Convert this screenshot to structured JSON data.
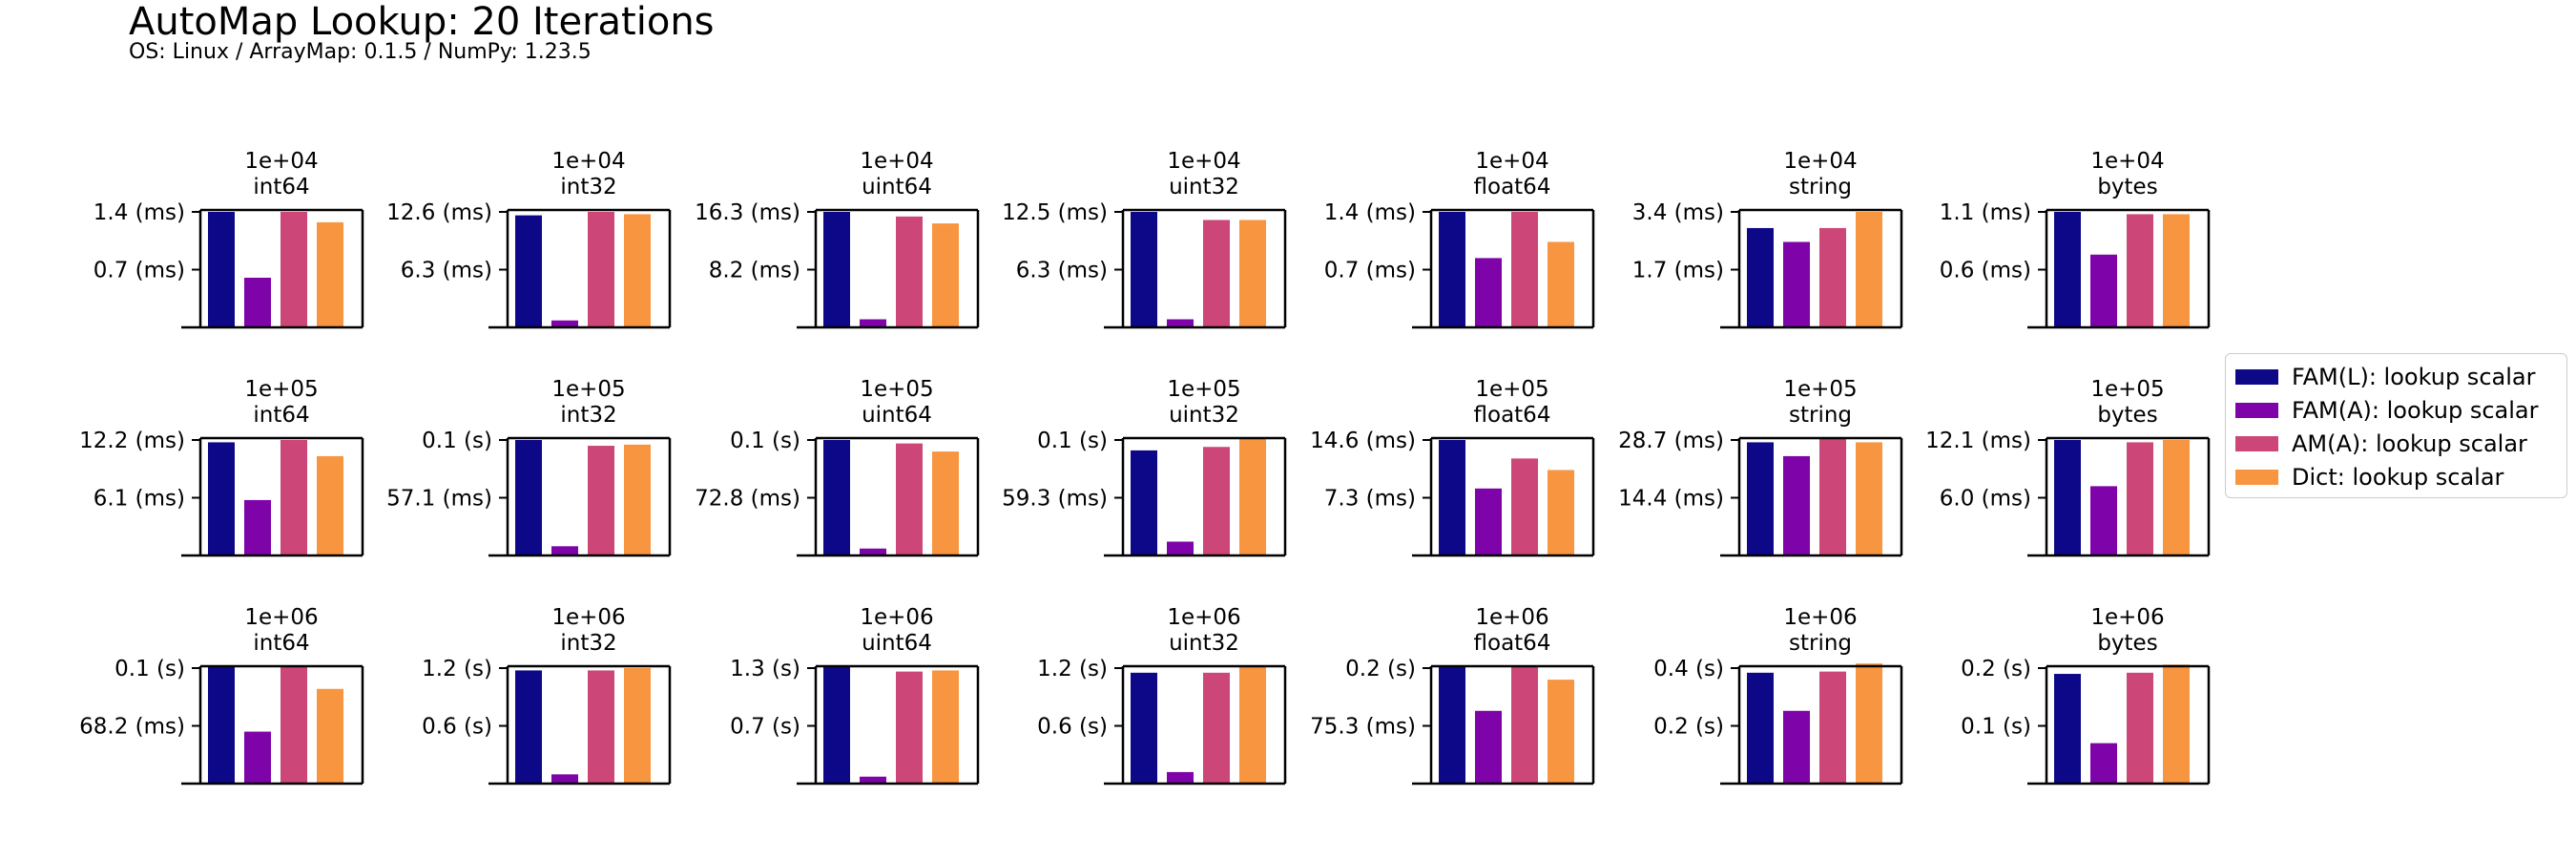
{
  "title": "AutoMap Lookup: 20 Iterations",
  "subtitle": "OS: Linux / ArrayMap: 0.1.5 / NumPy: 1.23.5",
  "legend": {
    "items": [
      {
        "label": "FAM(L): lookup scalar",
        "color": "#0d0887"
      },
      {
        "label": "FAM(A): lookup scalar",
        "color": "#7e03a8"
      },
      {
        "label": "AM(A): lookup scalar",
        "color": "#cc4778"
      },
      {
        "label": "Dict: lookup scalar",
        "color": "#f89540"
      }
    ]
  },
  "chart_data": {
    "type": "bar",
    "layout": "grid 3 rows x 7 columns",
    "series_names": [
      "FAM(L): lookup scalar",
      "FAM(A): lookup scalar",
      "AM(A): lookup scalar",
      "Dict: lookup scalar"
    ],
    "series_colors": [
      "#0d0887",
      "#7e03a8",
      "#cc4778",
      "#f89540"
    ],
    "subplots": [
      {
        "title_top": "1e+04",
        "title_bottom": "int64",
        "ytick_labels": [
          "1.4 (ms)",
          "0.7 (ms)"
        ],
        "ytick_fractions": [
          1.0,
          0.5
        ],
        "values": [
          1.0,
          0.43,
          1.0,
          0.91
        ]
      },
      {
        "title_top": "1e+04",
        "title_bottom": "int32",
        "ytick_labels": [
          "12.6 (ms)",
          "6.3 (ms)"
        ],
        "ytick_fractions": [
          1.0,
          0.5
        ],
        "values": [
          0.97,
          0.06,
          1.0,
          0.98
        ]
      },
      {
        "title_top": "1e+04",
        "title_bottom": "uint64",
        "ytick_labels": [
          "16.3 (ms)",
          "8.2 (ms)"
        ],
        "ytick_fractions": [
          1.0,
          0.5
        ],
        "values": [
          1.0,
          0.07,
          0.96,
          0.9
        ]
      },
      {
        "title_top": "1e+04",
        "title_bottom": "uint32",
        "ytick_labels": [
          "12.5 (ms)",
          "6.3 (ms)"
        ],
        "ytick_fractions": [
          1.0,
          0.5
        ],
        "values": [
          1.0,
          0.07,
          0.93,
          0.93
        ]
      },
      {
        "title_top": "1e+04",
        "title_bottom": "float64",
        "ytick_labels": [
          "1.4 (ms)",
          "0.7 (ms)"
        ],
        "ytick_fractions": [
          1.0,
          0.5
        ],
        "values": [
          1.0,
          0.6,
          1.0,
          0.74
        ]
      },
      {
        "title_top": "1e+04",
        "title_bottom": "string",
        "ytick_labels": [
          "3.4 (ms)",
          "1.7 (ms)"
        ],
        "ytick_fractions": [
          1.0,
          0.5
        ],
        "values": [
          0.86,
          0.74,
          0.86,
          1.0
        ]
      },
      {
        "title_top": "1e+04",
        "title_bottom": "bytes",
        "ytick_labels": [
          "1.1 (ms)",
          "0.6 (ms)"
        ],
        "ytick_fractions": [
          1.0,
          0.5
        ],
        "values": [
          1.0,
          0.63,
          0.98,
          0.98
        ]
      },
      {
        "title_top": "1e+05",
        "title_bottom": "int64",
        "ytick_labels": [
          "12.2 (ms)",
          "6.1 (ms)"
        ],
        "ytick_fractions": [
          1.0,
          0.5
        ],
        "values": [
          0.98,
          0.48,
          1.0,
          0.86
        ]
      },
      {
        "title_top": "1e+05",
        "title_bottom": "int32",
        "ytick_labels": [
          "0.1 (s)",
          "57.1 (ms)"
        ],
        "ytick_fractions": [
          1.0,
          0.5
        ],
        "values": [
          1.0,
          0.08,
          0.95,
          0.96
        ]
      },
      {
        "title_top": "1e+05",
        "title_bottom": "uint64",
        "ytick_labels": [
          "0.1 (s)",
          "72.8 (ms)"
        ],
        "ytick_fractions": [
          1.0,
          0.5
        ],
        "values": [
          1.0,
          0.06,
          0.97,
          0.9
        ]
      },
      {
        "title_top": "1e+05",
        "title_bottom": "uint32",
        "ytick_labels": [
          "0.1 (s)",
          "59.3 (ms)"
        ],
        "ytick_fractions": [
          1.0,
          0.5
        ],
        "values": [
          0.91,
          0.12,
          0.94,
          1.02
        ]
      },
      {
        "title_top": "1e+05",
        "title_bottom": "float64",
        "ytick_labels": [
          "14.6 (ms)",
          "7.3 (ms)"
        ],
        "ytick_fractions": [
          1.0,
          0.5
        ],
        "values": [
          1.0,
          0.58,
          0.84,
          0.74
        ]
      },
      {
        "title_top": "1e+05",
        "title_bottom": "string",
        "ytick_labels": [
          "28.7 (ms)",
          "14.4 (ms)"
        ],
        "ytick_fractions": [
          1.0,
          0.5
        ],
        "values": [
          0.98,
          0.86,
          1.02,
          0.98
        ]
      },
      {
        "title_top": "1e+05",
        "title_bottom": "bytes",
        "ytick_labels": [
          "12.1 (ms)",
          "6.0 (ms)"
        ],
        "ytick_fractions": [
          1.0,
          0.5
        ],
        "values": [
          1.0,
          0.6,
          0.98,
          1.0
        ]
      },
      {
        "title_top": "1e+06",
        "title_bottom": "int64",
        "ytick_labels": [
          "0.1 (s)",
          "68.2 (ms)"
        ],
        "ytick_fractions": [
          1.0,
          0.5
        ],
        "values": [
          1.02,
          0.45,
          1.02,
          0.82
        ]
      },
      {
        "title_top": "1e+06",
        "title_bottom": "int32",
        "ytick_labels": [
          "1.2 (s)",
          "0.6 (s)"
        ],
        "ytick_fractions": [
          1.0,
          0.5
        ],
        "values": [
          0.98,
          0.08,
          0.98,
          1.0
        ]
      },
      {
        "title_top": "1e+06",
        "title_bottom": "uint64",
        "ytick_labels": [
          "1.3 (s)",
          "0.7 (s)"
        ],
        "ytick_fractions": [
          1.0,
          0.5
        ],
        "values": [
          1.02,
          0.06,
          0.97,
          0.98
        ]
      },
      {
        "title_top": "1e+06",
        "title_bottom": "uint32",
        "ytick_labels": [
          "1.2 (s)",
          "0.6 (s)"
        ],
        "ytick_fractions": [
          1.0,
          0.5
        ],
        "values": [
          0.96,
          0.1,
          0.96,
          1.02
        ]
      },
      {
        "title_top": "1e+06",
        "title_bottom": "float64",
        "ytick_labels": [
          "0.2 (s)",
          "75.3 (ms)"
        ],
        "ytick_fractions": [
          1.0,
          0.5
        ],
        "values": [
          1.02,
          0.63,
          1.02,
          0.9
        ]
      },
      {
        "title_top": "1e+06",
        "title_bottom": "string",
        "ytick_labels": [
          "0.4 (s)",
          "0.2 (s)"
        ],
        "ytick_fractions": [
          1.0,
          0.5
        ],
        "values": [
          0.96,
          0.63,
          0.97,
          1.04
        ]
      },
      {
        "title_top": "1e+06",
        "title_bottom": "bytes",
        "ytick_labels": [
          "0.2 (s)",
          "0.1 (s)"
        ],
        "ytick_fractions": [
          1.0,
          0.5
        ],
        "values": [
          0.95,
          0.35,
          0.96,
          1.03
        ]
      }
    ],
    "ylim_fraction": [
      0,
      1.0
    ],
    "ylim_note": "bar heights and tick positions expressed as fractions of each subplot's top y-tick value",
    "grid": false,
    "legend_position": "center-right"
  }
}
